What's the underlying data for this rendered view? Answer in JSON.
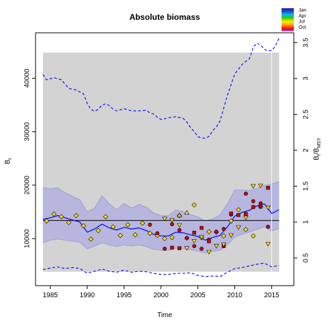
{
  "chart_data": {
    "type": "line",
    "title": "Absolute biomass",
    "xlabel": "Time",
    "ylabel_left": "B",
    "ylabel_left_sub": "t",
    "ylabel_right_main": "B",
    "ylabel_right_sub1": "t",
    "ylabel_right_sep": "/B",
    "ylabel_right_sub2": "MSY",
    "xlim": [
      1983,
      2018
    ],
    "ylim": [
      1200,
      48500
    ],
    "right_ylim": [
      0.114,
      3.637
    ],
    "x_ticks": [
      1985,
      1990,
      1995,
      2000,
      2005,
      2010,
      2015
    ],
    "y_ticks": [
      10000,
      20000,
      30000,
      40000
    ],
    "right_ticks": [
      0.5,
      1.0,
      1.5,
      2.0,
      2.5,
      3.0,
      3.5
    ],
    "right_tick_labels": [
      "0.5",
      "1",
      "1.5",
      "2",
      "2.5",
      "3",
      "3.5"
    ],
    "bmsy": 13400,
    "shaded_region": {
      "x": [
        1984,
        2016
      ],
      "y": [
        3800,
        44800
      ],
      "color": "#d3d3d3"
    },
    "prediction_divider_x": 2015,
    "legend": {
      "months": [
        "Jan",
        "Apr",
        "Jul",
        "Oct"
      ],
      "colors": [
        "#1f2f9a",
        "#2040d8",
        "#1f7ae0",
        "#14b6d8",
        "#10c060",
        "#5ad000",
        "#c8e000",
        "#ffe000",
        "#ffb000",
        "#ff7000",
        "#ff2000",
        "#cc00a0"
      ]
    },
    "series": [
      {
        "name": "",
        "style": "median",
        "color": "#0000ff",
        "x": [
          1984,
          1985,
          1986,
          1987,
          1988,
          1989,
          1990,
          1991,
          1992,
          1993,
          1994,
          1995,
          1996,
          1997,
          1998,
          1999,
          2000,
          2001,
          2002,
          2003,
          2004,
          2005,
          2006,
          2007,
          2008,
          2009,
          2010,
          2011,
          2012,
          2013,
          2014,
          2015,
          2016
        ],
        "y": [
          13600,
          13900,
          14300,
          13900,
          13500,
          13100,
          11200,
          11800,
          12700,
          12000,
          11600,
          12100,
          11800,
          12000,
          11500,
          10800,
          10500,
          10500,
          11200,
          11100,
          10700,
          10400,
          9700,
          10200,
          10600,
          12200,
          14200,
          14900,
          15300,
          16100,
          16500,
          14700,
          15400
        ]
      },
      {
        "name": "",
        "style": "ci-upper",
        "color": "#9c9cd2",
        "x": [
          1984,
          1985,
          1986,
          1987,
          1988,
          1989,
          1990,
          1991,
          1992,
          1993,
          1994,
          1995,
          1996,
          1997,
          1998,
          1999,
          2000,
          2001,
          2002,
          2003,
          2004,
          2005,
          2006,
          2007,
          2008,
          2009,
          2010,
          2011,
          2012,
          2013,
          2014,
          2015,
          2016
        ],
        "y": [
          19600,
          19300,
          19500,
          18600,
          17900,
          17300,
          15000,
          15700,
          18000,
          16500,
          15400,
          16600,
          15700,
          16400,
          15900,
          14800,
          14300,
          14300,
          15300,
          15100,
          14500,
          14100,
          13300,
          13700,
          14400,
          16500,
          19100,
          19100,
          19000,
          19400,
          20000,
          20200,
          20700
        ]
      },
      {
        "name": "",
        "style": "ci-lower",
        "color": "#9c9cd2",
        "x": [
          1984,
          1985,
          1986,
          1987,
          1988,
          1989,
          1990,
          1991,
          1992,
          1993,
          1994,
          1995,
          1996,
          1997,
          1998,
          1999,
          2000,
          2001,
          2002,
          2003,
          2004,
          2005,
          2006,
          2007,
          2008,
          2009,
          2010,
          2011,
          2012,
          2013,
          2014,
          2015,
          2016
        ],
        "y": [
          9200,
          9700,
          9900,
          9700,
          9500,
          9300,
          8100,
          8600,
          9200,
          8800,
          8500,
          8800,
          8600,
          8800,
          8500,
          8000,
          7800,
          7800,
          8200,
          8100,
          7900,
          7700,
          7300,
          7600,
          7800,
          8800,
          10300,
          10800,
          11200,
          11700,
          12200,
          11400,
          11900
        ]
      },
      {
        "name": "",
        "style": "dashed-upper",
        "color": "#0000ff",
        "x": [
          1984,
          1984.5,
          1985.5,
          1986.5,
          1987.5,
          1988.5,
          1989.5,
          1990,
          1990.5,
          1991,
          1991.5,
          1992,
          1992.5,
          1993,
          1993.5,
          1994,
          1995,
          1996,
          1997,
          1998,
          1998.5,
          1999,
          1999.5,
          2000,
          2000.5,
          2001,
          2002,
          2003,
          2003.5,
          2004,
          2004.5,
          2005,
          2005.5,
          2006,
          2006.5,
          2007,
          2007.5,
          2008,
          2009,
          2010,
          2011,
          2012,
          2012.5,
          2013,
          2013.5,
          2014,
          2014.5,
          2015,
          2015.5,
          2016
        ],
        "y": [
          40700,
          39700,
          40100,
          39700,
          38100,
          37800,
          37100,
          35300,
          34200,
          33800,
          34200,
          35000,
          35200,
          34900,
          34200,
          33900,
          34300,
          33900,
          33900,
          34000,
          33500,
          33300,
          32700,
          32300,
          32400,
          32600,
          32800,
          32500,
          31800,
          30800,
          30000,
          29100,
          28800,
          28800,
          29100,
          30200,
          30900,
          32000,
          36800,
          40800,
          42600,
          43700,
          45800,
          46600,
          46200,
          45400,
          45100,
          45200,
          46000,
          47500
        ]
      },
      {
        "name": "",
        "style": "dashed-lower",
        "color": "#0000ff",
        "x": [
          1984,
          1985,
          1986,
          1987,
          1988,
          1989,
          1990,
          1991,
          1992,
          1993,
          1994,
          1995,
          1996,
          1997,
          1998,
          1999,
          2000,
          2001,
          2002,
          2003,
          2004,
          2005,
          2006,
          2007,
          2008,
          2009,
          2010,
          2011,
          2012,
          2013,
          2014,
          2015,
          2016
        ],
        "y": [
          4200,
          4500,
          4700,
          4400,
          4600,
          4400,
          3500,
          3900,
          4300,
          3900,
          3700,
          4100,
          3700,
          3900,
          3800,
          3500,
          3300,
          3300,
          3500,
          3500,
          3600,
          3100,
          2900,
          3000,
          2900,
          3700,
          4400,
          4600,
          4900,
          5200,
          5400,
          4700,
          5000
        ]
      }
    ],
    "observations": [
      {
        "x": 1984.5,
        "y": 13300,
        "shape": "diamond",
        "color": "#ffdd00"
      },
      {
        "x": 1985.5,
        "y": 14600,
        "shape": "diamond",
        "color": "#ffdd00"
      },
      {
        "x": 1986.5,
        "y": 14100,
        "shape": "diamond",
        "color": "#ffdd00"
      },
      {
        "x": 1987.5,
        "y": 13000,
        "shape": "diamond",
        "color": "#ffdd00"
      },
      {
        "x": 1988.5,
        "y": 14300,
        "shape": "diamond",
        "color": "#ffdd00"
      },
      {
        "x": 1989.5,
        "y": 12400,
        "shape": "diamond",
        "color": "#ffdd00"
      },
      {
        "x": 1990.5,
        "y": 9900,
        "shape": "diamond",
        "color": "#ffdd00"
      },
      {
        "x": 1991.5,
        "y": 11500,
        "shape": "diamond",
        "color": "#ffdd00"
      },
      {
        "x": 1992.5,
        "y": 14100,
        "shape": "diamond",
        "color": "#ffdd00"
      },
      {
        "x": 1993.5,
        "y": 12200,
        "shape": "diamond",
        "color": "#ffdd00"
      },
      {
        "x": 1994.5,
        "y": 10600,
        "shape": "diamond",
        "color": "#ffdd00"
      },
      {
        "x": 1995.5,
        "y": 12600,
        "shape": "diamond",
        "color": "#ffdd00"
      },
      {
        "x": 1996.5,
        "y": 10700,
        "shape": "diamond",
        "color": "#ffdd00"
      },
      {
        "x": 1997.5,
        "y": 12900,
        "shape": "diamond",
        "color": "#ffdd00"
      },
      {
        "x": 1998.5,
        "y": 11000,
        "shape": "diamond",
        "color": "#ffdd00"
      },
      {
        "x": 1999.5,
        "y": 10600,
        "shape": "diamond",
        "color": "#ffdd00"
      },
      {
        "x": 2000.5,
        "y": 10000,
        "shape": "diamond",
        "color": "#ffdd00"
      },
      {
        "x": 2001.5,
        "y": 10200,
        "shape": "diamond",
        "color": "#ffdd00"
      },
      {
        "x": 2002.5,
        "y": 14300,
        "shape": "diamond",
        "color": "#ffdd00"
      },
      {
        "x": 2003.5,
        "y": 10100,
        "shape": "diamond",
        "color": "#ffdd00"
      },
      {
        "x": 2004.5,
        "y": 16300,
        "shape": "diamond",
        "color": "#ffdd00"
      },
      {
        "x": 2005.5,
        "y": 10200,
        "shape": "diamond",
        "color": "#ffdd00"
      },
      {
        "x": 2006.5,
        "y": 11300,
        "shape": "diamond",
        "color": "#ffdd00"
      },
      {
        "x": 2007.5,
        "y": 11200,
        "shape": "diamond",
        "color": "#ffdd00"
      },
      {
        "x": 2008.5,
        "y": 10500,
        "shape": "diamond",
        "color": "#ffdd00"
      },
      {
        "x": 2009.5,
        "y": 13300,
        "shape": "diamond",
        "color": "#ffdd00"
      },
      {
        "x": 2010.5,
        "y": 15400,
        "shape": "diamond",
        "color": "#ffdd00"
      },
      {
        "x": 2011.5,
        "y": 11700,
        "shape": "diamond",
        "color": "#ffdd00"
      },
      {
        "x": 2012.5,
        "y": 10500,
        "shape": "diamond",
        "color": "#ffdd00"
      },
      {
        "x": 2013.5,
        "y": 16000,
        "shape": "diamond",
        "color": "#ffdd00"
      },
      {
        "x": 1998.5,
        "y": 12600,
        "shape": "circle",
        "color": "#cc0000"
      },
      {
        "x": 1999.5,
        "y": 11000,
        "shape": "circle",
        "color": "#cc0000"
      },
      {
        "x": 2000.5,
        "y": 8100,
        "shape": "circle",
        "color": "#cc0000"
      },
      {
        "x": 2001.5,
        "y": 12700,
        "shape": "circle",
        "color": "#cc0000"
      },
      {
        "x": 2002.5,
        "y": 11600,
        "shape": "circle",
        "color": "#cc0000"
      },
      {
        "x": 2003.5,
        "y": 10100,
        "shape": "circle",
        "color": "#cc0000"
      },
      {
        "x": 2004.5,
        "y": 8600,
        "shape": "circle",
        "color": "#cc0000"
      },
      {
        "x": 2005.5,
        "y": 8100,
        "shape": "circle",
        "color": "#cc0000"
      },
      {
        "x": 2006.5,
        "y": 9800,
        "shape": "circle",
        "color": "#cc0000"
      },
      {
        "x": 2007.5,
        "y": 11300,
        "shape": "circle",
        "color": "#cc0000"
      },
      {
        "x": 2008.5,
        "y": 11800,
        "shape": "circle",
        "color": "#cc0000"
      },
      {
        "x": 2009.5,
        "y": 14500,
        "shape": "circle",
        "color": "#cc0000"
      },
      {
        "x": 2011.5,
        "y": 18400,
        "shape": "circle",
        "color": "#cc0000"
      },
      {
        "x": 2012.5,
        "y": 17000,
        "shape": "circle",
        "color": "#cc0000"
      },
      {
        "x": 2013.5,
        "y": 16600,
        "shape": "circle",
        "color": "#cc0000"
      },
      {
        "x": 2014.5,
        "y": 12200,
        "shape": "circle",
        "color": "#cc0000"
      },
      {
        "x": 2001.5,
        "y": 8300,
        "shape": "square",
        "color": "#cc0000"
      },
      {
        "x": 2002.5,
        "y": 8200,
        "shape": "square",
        "color": "#cc0000"
      },
      {
        "x": 2004.5,
        "y": 11100,
        "shape": "square",
        "color": "#cc0000"
      },
      {
        "x": 2005.5,
        "y": 12000,
        "shape": "square",
        "color": "#cc0000"
      },
      {
        "x": 2006.5,
        "y": 9500,
        "shape": "square",
        "color": "#cc0000"
      },
      {
        "x": 2008.5,
        "y": 8600,
        "shape": "square",
        "color": "#cc0000"
      },
      {
        "x": 2009.5,
        "y": 14700,
        "shape": "square",
        "color": "#cc0000"
      },
      {
        "x": 2010.5,
        "y": 14400,
        "shape": "square",
        "color": "#cc0000"
      },
      {
        "x": 2011.5,
        "y": 14600,
        "shape": "square",
        "color": "#cc0000"
      },
      {
        "x": 2012.5,
        "y": 15900,
        "shape": "square",
        "color": "#cc0000"
      },
      {
        "x": 2013.5,
        "y": 16000,
        "shape": "square",
        "color": "#cc0000"
      },
      {
        "x": 2014.5,
        "y": 19500,
        "shape": "square",
        "color": "#cc0000"
      },
      {
        "x": 2000.5,
        "y": 13700,
        "shape": "triangle-down",
        "color": "#ffdd00"
      },
      {
        "x": 2001.5,
        "y": 13400,
        "shape": "triangle-down",
        "color": "#ffdd00"
      },
      {
        "x": 2002.5,
        "y": 12500,
        "shape": "triangle-down",
        "color": "#ffdd00"
      },
      {
        "x": 2003.5,
        "y": 8200,
        "shape": "triangle-down",
        "color": "#ffdd00"
      },
      {
        "x": 2004.5,
        "y": 9500,
        "shape": "triangle-down",
        "color": "#ffdd00"
      },
      {
        "x": 2005.5,
        "y": 10300,
        "shape": "triangle-down",
        "color": "#ffdd00"
      },
      {
        "x": 2006.5,
        "y": 7500,
        "shape": "triangle-down",
        "color": "#ffdd00"
      },
      {
        "x": 2007.5,
        "y": 8600,
        "shape": "triangle-down",
        "color": "#ffdd00"
      },
      {
        "x": 2008.5,
        "y": 8900,
        "shape": "triangle-down",
        "color": "#ffdd00"
      },
      {
        "x": 2009.5,
        "y": 10600,
        "shape": "triangle-down",
        "color": "#ffdd00"
      },
      {
        "x": 2010.5,
        "y": 12100,
        "shape": "triangle-down",
        "color": "#ffdd00"
      },
      {
        "x": 2011.5,
        "y": 13900,
        "shape": "triangle-down",
        "color": "#ffdd00"
      },
      {
        "x": 2012.5,
        "y": 19800,
        "shape": "triangle-down",
        "color": "#ffdd00"
      },
      {
        "x": 2013.5,
        "y": 19900,
        "shape": "triangle-down",
        "color": "#ffdd00"
      },
      {
        "x": 2014.5,
        "y": 15800,
        "shape": "triangle-down",
        "color": "#ffdd00"
      },
      {
        "x": 2014.5,
        "y": 9000,
        "shape": "triangle-down",
        "color": "#ffdd00"
      },
      {
        "x": 2003.5,
        "y": 14900,
        "shape": "triangle-up",
        "color": "#ffdd00"
      },
      {
        "x": 2002.5,
        "y": 14400,
        "shape": "triangle-up",
        "color": "#ffdd00"
      }
    ]
  }
}
